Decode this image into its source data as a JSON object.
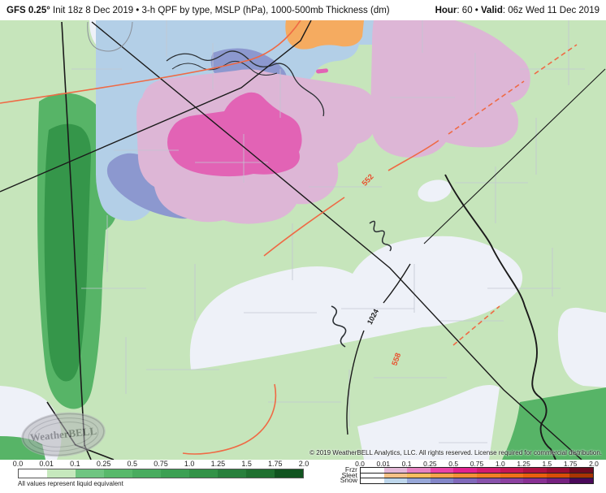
{
  "header": {
    "model": "GFS 0.25°",
    "title_rest": " Init 18z 8 Dec 2019 • 3-h QPF by type, MSLP (hPa), 1000-500mb Thickness (dm)",
    "hour_label": "Hour",
    "hour_value": ": 60 • ",
    "valid_label": "Valid",
    "valid_value": ": 06z Wed 11 Dec 2019"
  },
  "map": {
    "contour_labels": [
      {
        "text": "552",
        "type": "thickness"
      },
      {
        "text": "558",
        "type": "thickness"
      },
      {
        "text": "1024",
        "type": "mslp"
      }
    ],
    "watermark": {
      "brand": "WeatherBELL"
    },
    "copyright": "© 2019 WeatherBELL Analytics, LLC. All rights reserved. License required for commercial distribution.",
    "palette": {
      "qpf_light_green": "#c6e5bb",
      "qpf_medium_green": "#57b467",
      "qpf_dark_green": "#35964a",
      "snow_light": "#b3cfe7",
      "snow_medium": "#8c98cf",
      "freezing_rain_light": "#ddb6d6",
      "freezing_rain_medium": "#e263b5",
      "sleet": "#f5ab60",
      "thickness_contour": "#ef6a45",
      "mslp_contour": "#1a1a1a"
    }
  },
  "legend": {
    "note": "All values represent liquid equivalent",
    "qpf": {
      "ticks": [
        "0.0",
        "0.01",
        "0.1",
        "0.25",
        "0.5",
        "0.75",
        "1.0",
        "1.25",
        "1.5",
        "1.75",
        "2.0"
      ],
      "colors": [
        "#ffffff",
        "#c6e8bd",
        "#6fc581",
        "#58b96b",
        "#49ac5f",
        "#3ca053",
        "#329247",
        "#28803c",
        "#1f7030",
        "#115420"
      ]
    },
    "ptype": {
      "ticks": [
        "0.0",
        "0.01",
        "0.1",
        "0.25",
        "0.5",
        "0.75",
        "1.0",
        "1.25",
        "1.5",
        "1.75",
        "2.0"
      ],
      "rows": [
        {
          "label": "Frzr",
          "colors": [
            "#ffffff",
            "#e4b9d7",
            "#e783c2",
            "#ea44a8",
            "#e22290",
            "#d31c70",
            "#c51656",
            "#ae1143",
            "#990d34",
            "#700a21"
          ]
        },
        {
          "label": "Sleet",
          "colors": [
            "#ffffff",
            "#f8c286",
            "#fbbe5e",
            "#f8a34d",
            "#f69039",
            "#f37f27",
            "#f0701a",
            "#ea5e0f",
            "#d94d08",
            "#a93403"
          ]
        },
        {
          "label": "Snow",
          "colors": [
            "#ffffff",
            "#bed7ec",
            "#97a7d8",
            "#8386c8",
            "#8069ba",
            "#8852ab",
            "#8c41a0",
            "#883093",
            "#75217f",
            "#4a095a"
          ]
        }
      ]
    }
  }
}
